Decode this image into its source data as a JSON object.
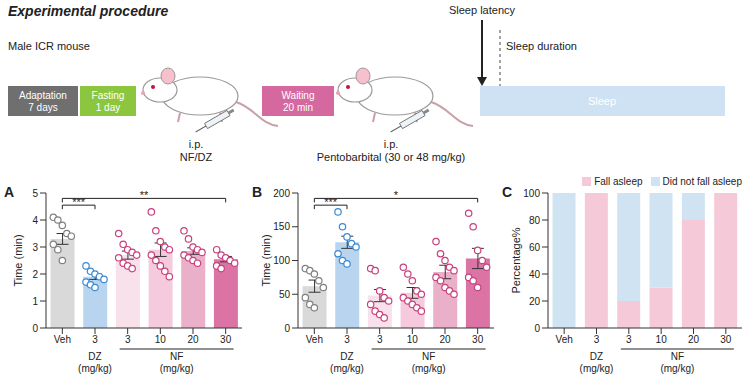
{
  "procedure": {
    "title": "Experimental procedure",
    "subject": "Male ICR mouse",
    "steps": [
      {
        "label": [
          "Adaptation",
          "7 days"
        ],
        "color": "#6f6f6f"
      },
      {
        "label": [
          "Fasting",
          "1 day"
        ],
        "color": "#8cc63f"
      },
      {
        "label": [
          "Waiting",
          "20 min"
        ],
        "color": "#d4689f"
      }
    ],
    "injections": [
      [
        "i.p.",
        "NF/DZ"
      ],
      [
        "i.p.",
        "Pentobarbital (30 or 48 mg/kg)"
      ]
    ],
    "sleep": {
      "label": "Sleep",
      "color": "#cfe2f3",
      "latency": "Sleep latency",
      "duration": "Sleep duration"
    }
  },
  "chart_data": [
    {
      "panel": "A",
      "type": "bar",
      "ylabel": "Time (min)",
      "categories": [
        "Veh",
        "3",
        "3",
        "10",
        "20",
        "30"
      ],
      "groups": [
        {
          "name": "DZ",
          "unit": "(mg/kg)",
          "start": 1,
          "end": 1
        },
        {
          "name": "NF",
          "unit": "(mg/kg)",
          "start": 2,
          "end": 5
        }
      ],
      "values": [
        3.3,
        1.9,
        2.7,
        2.9,
        2.85,
        2.55
      ],
      "errors": [
        0.2,
        0.1,
        0.15,
        0.25,
        0.12,
        0.1
      ],
      "points": [
        [
          4.1,
          4.0,
          3.8,
          3.5,
          3.4,
          3.1,
          2.9,
          2.5
        ],
        [
          2.3,
          2.1,
          2.0,
          1.9,
          1.8,
          1.7,
          1.6,
          1.5
        ],
        [
          3.5,
          3.1,
          2.9,
          2.8,
          2.7,
          2.6,
          2.4,
          2.3,
          2.2
        ],
        [
          4.3,
          3.6,
          3.2,
          3.0,
          2.9,
          2.7,
          2.5,
          2.3,
          2.1,
          1.9
        ],
        [
          3.6,
          3.3,
          3.0,
          2.9,
          2.8,
          2.7,
          2.6,
          2.5,
          2.4
        ],
        [
          2.9,
          2.7,
          2.6,
          2.5,
          2.4,
          2.3,
          2.2
        ]
      ],
      "colors": [
        "#d9d9d9",
        "#b9d4ee",
        "#f9e1eb",
        "#f4cadc",
        "#eab0ca",
        "#db74a4"
      ],
      "point_colors": [
        "#7f7f7f",
        "#3b8ad4",
        "#c9407e",
        "#c9407e",
        "#c9407e",
        "#c9407e"
      ],
      "ylim": [
        0,
        5
      ],
      "yticks": [
        0,
        1,
        2,
        3,
        4,
        5
      ],
      "significance": [
        {
          "from": 0,
          "to": 1,
          "label": "***"
        },
        {
          "from": 0,
          "to": 5,
          "label": "**"
        }
      ]
    },
    {
      "panel": "B",
      "type": "bar",
      "ylabel": "Time (min)",
      "categories": [
        "Veh",
        "3",
        "3",
        "10",
        "20",
        "30"
      ],
      "groups": [
        {
          "name": "DZ",
          "unit": "(mg/kg)",
          "start": 1,
          "end": 1
        },
        {
          "name": "NF",
          "unit": "(mg/kg)",
          "start": 2,
          "end": 5
        }
      ],
      "values": [
        62,
        127,
        48,
        52,
        83,
        103
      ],
      "errors": [
        9,
        9,
        9,
        8,
        10,
        15
      ],
      "points": [
        [
          88,
          85,
          80,
          70,
          60,
          45,
          35,
          30
        ],
        [
          172,
          150,
          135,
          125,
          120,
          110,
          100,
          95
        ],
        [
          88,
          85,
          55,
          45,
          40,
          35,
          25,
          20,
          15
        ],
        [
          90,
          80,
          70,
          55,
          50,
          45,
          40,
          35,
          30,
          25
        ],
        [
          128,
          110,
          100,
          90,
          85,
          75,
          70,
          60,
          55,
          50
        ],
        [
          170,
          150,
          115,
          100,
          90,
          75,
          70,
          60
        ]
      ],
      "colors": [
        "#d9d9d9",
        "#b9d4ee",
        "#f9e1eb",
        "#f4cadc",
        "#eab0ca",
        "#db74a4"
      ],
      "point_colors": [
        "#7f7f7f",
        "#3b8ad4",
        "#c9407e",
        "#c9407e",
        "#c9407e",
        "#c9407e"
      ],
      "ylim": [
        0,
        200
      ],
      "yticks": [
        0,
        50,
        100,
        150,
        200
      ],
      "significance": [
        {
          "from": 0,
          "to": 1,
          "label": "***"
        },
        {
          "from": 0,
          "to": 5,
          "label": "*"
        }
      ]
    },
    {
      "panel": "C",
      "type": "bar",
      "stacked": true,
      "ylabel": "Percentage%",
      "categories": [
        "Veh",
        "3",
        "3",
        "10",
        "20",
        "30"
      ],
      "groups": [
        {
          "name": "DZ",
          "unit": "(mg/kg)",
          "start": 1,
          "end": 1
        },
        {
          "name": "NF",
          "unit": "(mg/kg)",
          "start": 2,
          "end": 5
        }
      ],
      "series": [
        {
          "name": "Fall asleep",
          "color": "#f6c9d9",
          "values": [
            0,
            100,
            20,
            30,
            80,
            100
          ]
        },
        {
          "name": "Did not fall asleep",
          "color": "#cfe3f2",
          "values": [
            100,
            0,
            80,
            70,
            20,
            0
          ]
        }
      ],
      "ylim": [
        0,
        100
      ],
      "yticks": [
        0,
        20,
        40,
        60,
        80,
        100
      ],
      "legend": "top"
    }
  ]
}
